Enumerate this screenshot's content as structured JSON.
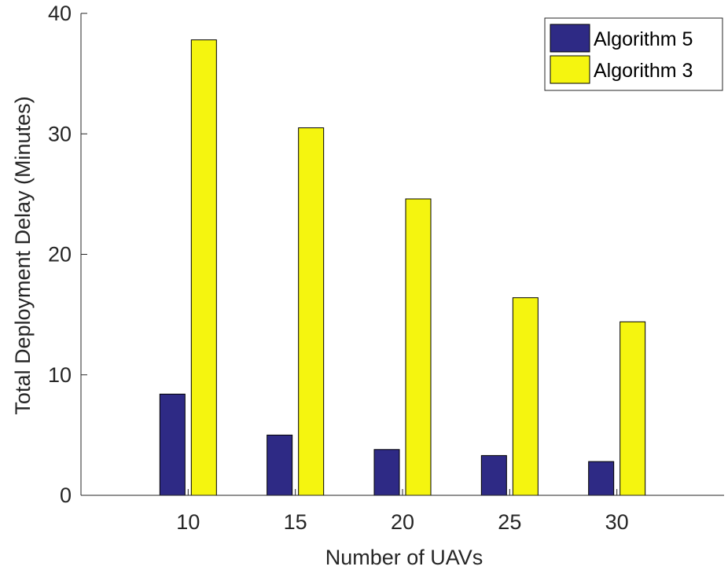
{
  "chart_data": {
    "type": "bar",
    "xlabel": "Number of UAVs",
    "ylabel": "Total Deployment Delay (Minutes)",
    "categories": [
      "10",
      "15",
      "20",
      "25",
      "30"
    ],
    "ylim": [
      0,
      40
    ],
    "yticks": [
      0,
      10,
      20,
      30,
      40
    ],
    "grid": false,
    "legend_position": "top-right",
    "series": [
      {
        "name": "Algorithm 5",
        "color": "#2e2a85",
        "values": [
          8.4,
          5.0,
          3.8,
          3.3,
          2.8
        ]
      },
      {
        "name": "Algorithm 3",
        "color": "#f5f50f",
        "values": [
          37.8,
          30.5,
          24.6,
          16.4,
          14.4
        ]
      }
    ]
  }
}
